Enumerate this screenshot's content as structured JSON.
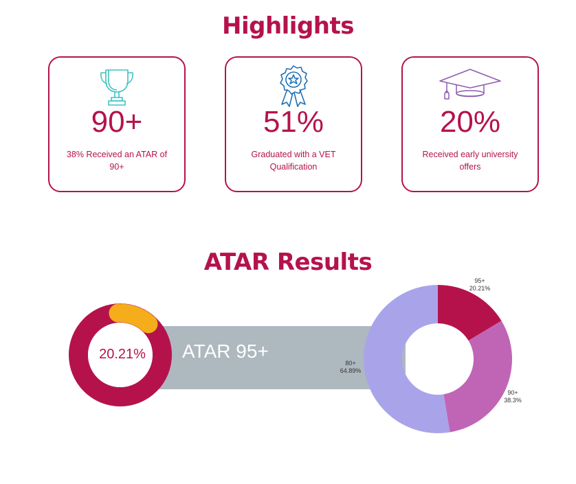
{
  "highlights": {
    "title": "Highlights",
    "cards": [
      {
        "icon": "trophy-icon",
        "value": "90+",
        "description": "38% Received an ATAR of 90+"
      },
      {
        "icon": "award-ribbon-icon",
        "value": "51%",
        "description": "Graduated with a VET Qualification"
      },
      {
        "icon": "graduation-cap-icon",
        "value": "20%",
        "description": "Received early university offers"
      }
    ]
  },
  "atar": {
    "title": "ATAR Results",
    "banner_label": "ATAR 95+",
    "small_donut_label": "20.21%"
  },
  "colors": {
    "brand": "#b5124c",
    "trophy": "#3ec1c1",
    "ribbon": "#1f6fb2",
    "cap": "#8e5bb0",
    "banner": "#aeb8bf",
    "small_donut_highlight": "#f5ad1b",
    "slice_95": "#b5124c",
    "slice_90": "#c065b5",
    "slice_80": "#a9a4ea"
  },
  "chart_data": [
    {
      "type": "pie",
      "subtype": "donut",
      "values": [
        20.21,
        79.79
      ],
      "center_label": "20.21%"
    },
    {
      "type": "pie",
      "subtype": "donut",
      "categories": [
        "95+",
        "90+",
        "80+"
      ],
      "values": [
        20.21,
        38.3,
        64.89
      ],
      "value_labels": [
        "20.21%",
        "38.3%",
        "64.89%"
      ]
    }
  ]
}
